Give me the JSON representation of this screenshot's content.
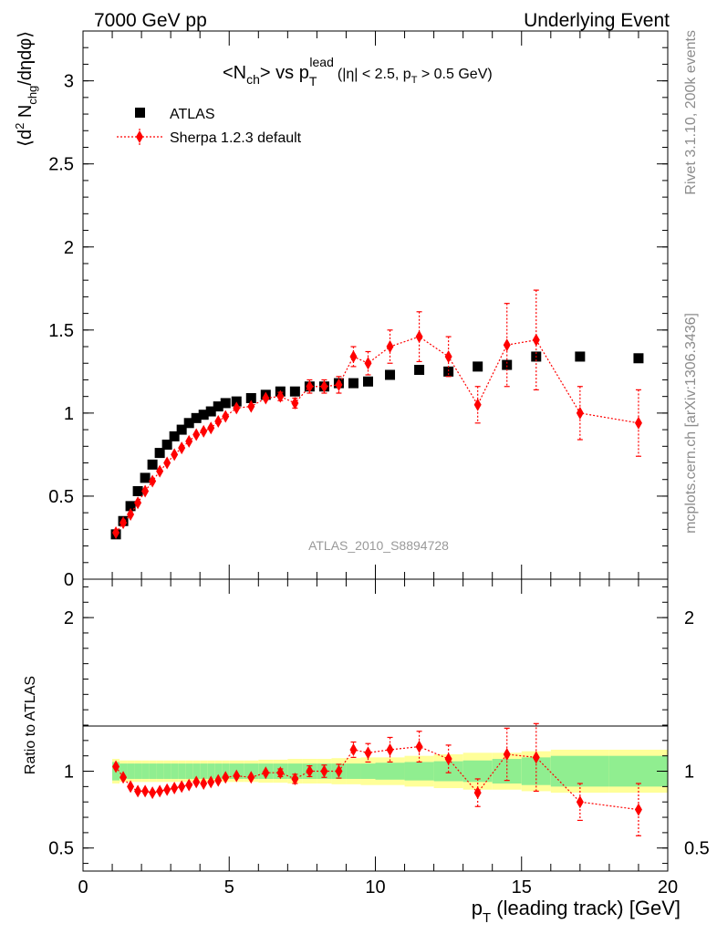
{
  "header": {
    "left": "7000 GeV pp",
    "right": "Underlying Event"
  },
  "side_labels": {
    "rivet": "Rivet 3.1.10,  200k events",
    "mcplots": "mcplots.cern.ch [arXiv:1306.3436]"
  },
  "chart_data": [
    {
      "type": "scatter",
      "panel": "main",
      "title": {
        "main": "<N",
        "main_sub": "ch",
        "vs": "> vs p",
        "sup": "lead",
        "sub": "T",
        "cut_a": "(|η| < 2.5, p",
        "cut_sub": "T",
        "cut_b": " > 0.5 GeV)"
      },
      "analysis_label": "ATLAS_2010_S8894728",
      "ylabel": {
        "a": "⟨d",
        "sup": "2",
        "b": " N",
        "sub": "chg",
        "c": "/dηdφ⟩"
      },
      "ylim": [
        0,
        3.3
      ],
      "yticks": [
        {
          "v": 0,
          "label": "0"
        },
        {
          "v": 0.5,
          "label": "0.5"
        },
        {
          "v": 1,
          "label": "1"
        },
        {
          "v": 1.5,
          "label": "1.5"
        },
        {
          "v": 2,
          "label": "2"
        },
        {
          "v": 2.5,
          "label": "2.5"
        },
        {
          "v": 3,
          "label": "3"
        }
      ],
      "xlim": [
        0,
        20
      ],
      "legend_position": "top-left",
      "series": [
        {
          "name": "ATLAS",
          "marker": "square",
          "color": "#000000",
          "x": [
            1.125,
            1.375,
            1.625,
            1.875,
            2.125,
            2.375,
            2.625,
            2.875,
            3.125,
            3.375,
            3.625,
            3.875,
            4.125,
            4.375,
            4.625,
            4.875,
            5.25,
            5.75,
            6.25,
            6.75,
            7.25,
            7.75,
            8.25,
            8.75,
            9.25,
            9.75,
            10.5,
            11.5,
            12.5,
            13.5,
            14.5,
            15.5,
            17.0,
            19.0
          ],
          "y": [
            0.27,
            0.35,
            0.44,
            0.53,
            0.61,
            0.69,
            0.76,
            0.81,
            0.86,
            0.9,
            0.94,
            0.97,
            0.99,
            1.01,
            1.04,
            1.06,
            1.07,
            1.09,
            1.11,
            1.13,
            1.13,
            1.16,
            1.16,
            1.18,
            1.18,
            1.19,
            1.23,
            1.26,
            1.25,
            1.28,
            1.29,
            1.34,
            1.34,
            1.33
          ]
        },
        {
          "name": "Sherpa 1.2.3 default",
          "marker": "diamond",
          "color": "#ff0000",
          "x": [
            1.125,
            1.375,
            1.625,
            1.875,
            2.125,
            2.375,
            2.625,
            2.875,
            3.125,
            3.375,
            3.625,
            3.875,
            4.125,
            4.375,
            4.625,
            4.875,
            5.25,
            5.75,
            6.25,
            6.75,
            7.25,
            7.75,
            8.25,
            8.75,
            9.25,
            9.75,
            10.5,
            11.5,
            12.5,
            13.5,
            14.5,
            15.5,
            17.0,
            19.0
          ],
          "y": [
            0.28,
            0.34,
            0.39,
            0.46,
            0.53,
            0.59,
            0.65,
            0.7,
            0.75,
            0.79,
            0.83,
            0.87,
            0.89,
            0.91,
            0.95,
            0.98,
            1.03,
            1.04,
            1.09,
            1.1,
            1.06,
            1.16,
            1.16,
            1.17,
            1.34,
            1.3,
            1.4,
            1.46,
            1.34,
            1.05,
            1.41,
            1.44,
            1.0,
            0.94
          ],
          "yerr": [
            0.01,
            0.01,
            0.01,
            0.01,
            0.01,
            0.01,
            0.01,
            0.01,
            0.01,
            0.01,
            0.01,
            0.01,
            0.01,
            0.01,
            0.01,
            0.01,
            0.015,
            0.015,
            0.02,
            0.025,
            0.03,
            0.04,
            0.04,
            0.05,
            0.06,
            0.07,
            0.1,
            0.15,
            0.12,
            0.11,
            0.25,
            0.3,
            0.16,
            0.2
          ]
        }
      ]
    },
    {
      "type": "scatter",
      "panel": "ratio",
      "ylabel": "Ratio to ATLAS",
      "ylim": [
        0.35,
        2.25
      ],
      "yticks": [
        {
          "v": 0.5,
          "label": "0.5"
        },
        {
          "v": 1,
          "label": "1"
        },
        {
          "v": 2,
          "label": "2"
        }
      ],
      "xlim": [
        0,
        20
      ],
      "xticks": [
        {
          "v": 0,
          "label": "0"
        },
        {
          "v": 5,
          "label": "5"
        },
        {
          "v": 10,
          "label": "10"
        },
        {
          "v": 15,
          "label": "15"
        },
        {
          "v": 20,
          "label": "20"
        }
      ],
      "xlabel": {
        "a": "p",
        "sub": "T",
        "b": " (leading track) [GeV]"
      },
      "bands": {
        "inner_color": "#90ee90",
        "outer_color": "#ffff99",
        "edges": [
          1.0,
          1.25,
          1.5,
          1.75,
          2.0,
          2.25,
          2.5,
          2.75,
          3.0,
          3.25,
          3.5,
          3.75,
          4.0,
          4.25,
          4.5,
          4.75,
          5.0,
          5.5,
          6.0,
          6.5,
          7.0,
          7.5,
          8.0,
          8.5,
          9.0,
          9.5,
          10.0,
          11.0,
          12.0,
          13.0,
          14.0,
          15.0,
          16.0,
          18.0,
          20.0
        ],
        "inner_half": [
          0.06,
          0.05,
          0.05,
          0.05,
          0.05,
          0.05,
          0.05,
          0.05,
          0.05,
          0.05,
          0.05,
          0.05,
          0.05,
          0.05,
          0.05,
          0.05,
          0.05,
          0.05,
          0.05,
          0.05,
          0.05,
          0.05,
          0.05,
          0.05,
          0.05,
          0.05,
          0.055,
          0.06,
          0.065,
          0.07,
          0.08,
          0.09,
          0.1,
          0.1
        ],
        "outer_half": [
          0.08,
          0.07,
          0.07,
          0.07,
          0.07,
          0.07,
          0.07,
          0.07,
          0.07,
          0.07,
          0.07,
          0.07,
          0.07,
          0.07,
          0.07,
          0.07,
          0.07,
          0.07,
          0.075,
          0.075,
          0.08,
          0.08,
          0.08,
          0.085,
          0.085,
          0.09,
          0.09,
          0.1,
          0.11,
          0.12,
          0.12,
          0.13,
          0.14,
          0.14
        ]
      },
      "series": [
        {
          "name": "Sherpa 1.2.3 default",
          "marker": "diamond",
          "color": "#ff0000",
          "x": [
            1.125,
            1.375,
            1.625,
            1.875,
            2.125,
            2.375,
            2.625,
            2.875,
            3.125,
            3.375,
            3.625,
            3.875,
            4.125,
            4.375,
            4.625,
            4.875,
            5.25,
            5.75,
            6.25,
            6.75,
            7.25,
            7.75,
            8.25,
            8.75,
            9.25,
            9.75,
            10.5,
            11.5,
            12.5,
            13.5,
            14.5,
            15.5,
            17.0,
            19.0
          ],
          "y": [
            1.03,
            0.96,
            0.9,
            0.87,
            0.87,
            0.86,
            0.87,
            0.88,
            0.89,
            0.9,
            0.91,
            0.93,
            0.92,
            0.93,
            0.94,
            0.96,
            0.97,
            0.96,
            0.99,
            0.99,
            0.95,
            1.0,
            1.0,
            1.0,
            1.14,
            1.12,
            1.14,
            1.16,
            1.08,
            0.86,
            1.11,
            1.09,
            0.8,
            0.75
          ],
          "yerr": [
            0.01,
            0.01,
            0.01,
            0.01,
            0.01,
            0.01,
            0.01,
            0.01,
            0.01,
            0.01,
            0.01,
            0.01,
            0.01,
            0.01,
            0.01,
            0.01,
            0.015,
            0.015,
            0.02,
            0.025,
            0.03,
            0.035,
            0.04,
            0.045,
            0.05,
            0.06,
            0.08,
            0.1,
            0.09,
            0.09,
            0.17,
            0.22,
            0.12,
            0.17
          ]
        }
      ]
    }
  ]
}
